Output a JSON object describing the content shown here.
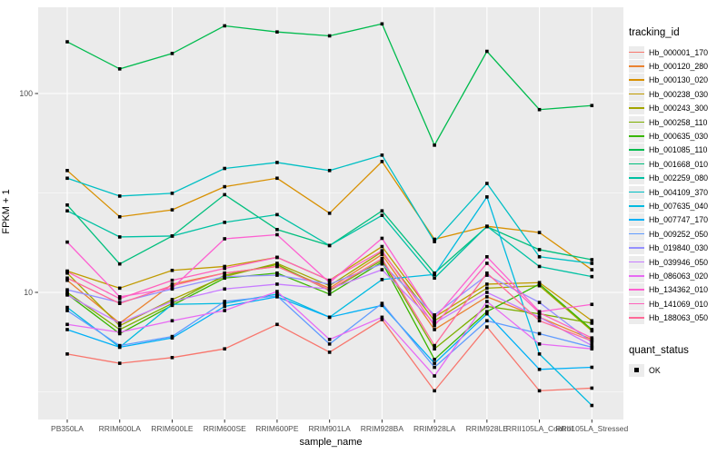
{
  "figure": {
    "panel_background": "#EBEBEB",
    "gridline_color": "#FFFFFF",
    "tick_label_color": "#4D4D4D",
    "axis_title_color": "#000000",
    "point_color": "#000000"
  },
  "legend": {
    "tracking_title": "tracking_id",
    "quant_title": "quant_status",
    "quant_items": [
      {
        "label": "OK",
        "shape": "square",
        "color": "#000000"
      }
    ]
  },
  "chart_data": {
    "type": "line",
    "title": "",
    "xlabel": "sample_name",
    "ylabel": "FPKM + 1",
    "y_scale": "log10",
    "ylim": [
      2,
      300
    ],
    "y_ticks": [
      10,
      100
    ],
    "y_minor_ticks": [
      3.162,
      31.62
    ],
    "grid": true,
    "legend_position": "right",
    "marker": "black-square",
    "categories": [
      "PB350LA",
      "RRIM600LA",
      "RRIM600LE",
      "RRIM600SE",
      "RRIM600PE",
      "RRIM901LA",
      "RRIM928BA",
      "RRIM928LA",
      "RRIM928LE",
      "RRII105LA_Control",
      "RRII105LA_Stressed"
    ],
    "series": [
      {
        "name": "Hb_000001_170",
        "color": "#F8766D",
        "values": [
          4.9,
          4.4,
          4.7,
          5.2,
          6.9,
          5.0,
          7.3,
          3.2,
          6.7,
          3.2,
          3.3
        ]
      },
      {
        "name": "Hb_000120_280",
        "color": "#EA8331",
        "values": [
          11.5,
          7.0,
          11.0,
          12.5,
          13.5,
          10.5,
          15.5,
          6.5,
          9.5,
          7.5,
          5.8
        ]
      },
      {
        "name": "Hb_000130_020",
        "color": "#D89000",
        "values": [
          41,
          24,
          26,
          34,
          37.5,
          25,
          45.5,
          18.5,
          21.5,
          20,
          13
        ]
      },
      {
        "name": "Hb_000238_030",
        "color": "#C09B00",
        "values": [
          12.8,
          10.5,
          12.9,
          13.5,
          15.0,
          11.5,
          17.0,
          7.5,
          11.0,
          11.2,
          7.2
        ]
      },
      {
        "name": "Hb_000243_300",
        "color": "#A3A500",
        "values": [
          12.5,
          6.8,
          9.2,
          12.0,
          14.0,
          10.8,
          16.0,
          7.2,
          10.5,
          10.8,
          6.4
        ]
      },
      {
        "name": "Hb_000258_110",
        "color": "#7CAE00",
        "values": [
          10.0,
          6.5,
          8.8,
          12.2,
          13.8,
          10.2,
          14.5,
          5.2,
          8.5,
          7.8,
          7.0
        ]
      },
      {
        "name": "Hb_000635_030",
        "color": "#39B600",
        "values": [
          9.8,
          6.2,
          8.6,
          11.8,
          12.5,
          9.8,
          14.2,
          4.6,
          8.0,
          11.0,
          6.5
        ]
      },
      {
        "name": "Hb_001085_110",
        "color": "#00BB4E",
        "values": [
          182,
          133,
          159,
          219,
          204,
          195,
          224,
          55,
          163,
          83,
          87
        ]
      },
      {
        "name": "Hb_001668_010",
        "color": "#00BF7D",
        "values": [
          27.5,
          13.9,
          19.2,
          31.0,
          20.7,
          17.2,
          25.7,
          12.5,
          21.4,
          16.4,
          14.6
        ]
      },
      {
        "name": "Hb_002259_080",
        "color": "#00C1A3",
        "values": [
          25.7,
          19.0,
          19.2,
          22.5,
          24.6,
          17.2,
          24.4,
          11.8,
          21.5,
          13.5,
          12.0
        ]
      },
      {
        "name": "Hb_004109_370",
        "color": "#00BFC4",
        "values": [
          37.5,
          30.5,
          31.5,
          42.0,
          45.0,
          41.0,
          49.0,
          18.0,
          35.3,
          15.1,
          14.0
        ]
      },
      {
        "name": "Hb_007635_040",
        "color": "#00BAE0",
        "values": [
          8.4,
          5.3,
          8.7,
          8.8,
          9.8,
          7.5,
          11.6,
          12.3,
          30.2,
          4.9,
          2.7
        ]
      },
      {
        "name": "Hb_007747_170",
        "color": "#00B0F6",
        "values": [
          6.5,
          5.3,
          5.9,
          8.5,
          9.5,
          7.5,
          8.6,
          4.4,
          7.8,
          4.1,
          4.2
        ]
      },
      {
        "name": "Hb_009252_050",
        "color": "#619CFF",
        "values": [
          8.1,
          5.4,
          6.0,
          9.0,
          9.6,
          5.5,
          8.8,
          4.2,
          7.2,
          6.2,
          5.3
        ]
      },
      {
        "name": "Hb_019840_030",
        "color": "#9590FF",
        "values": [
          10.3,
          8.9,
          10.4,
          12.0,
          12.2,
          11.0,
          13.9,
          7.7,
          12.2,
          8.9,
          5.6
        ]
      },
      {
        "name": "Hb_039946_050",
        "color": "#C77CFF",
        "values": [
          9.7,
          7.0,
          9.0,
          10.4,
          11.0,
          10.4,
          13.0,
          7.0,
          10.0,
          7.5,
          5.4
        ]
      },
      {
        "name": "Hb_086063_020",
        "color": "#E76BF3",
        "values": [
          6.9,
          6.3,
          7.2,
          8.1,
          10.1,
          5.8,
          7.5,
          3.8,
          9.0,
          5.5,
          5.2
        ]
      },
      {
        "name": "Hb_134362_010",
        "color": "#FD61D1",
        "values": [
          17.9,
          9.5,
          10.5,
          18.6,
          19.5,
          11.2,
          18.7,
          7.4,
          15.1,
          8.0,
          8.7
        ]
      },
      {
        "name": "Hb_141069_010",
        "color": "#FF62BC",
        "values": [
          12.7,
          9.3,
          11.5,
          13.2,
          15.0,
          11.5,
          16.2,
          6.8,
          14.0,
          7.9,
          5.9
        ]
      },
      {
        "name": "Hb_188063_050",
        "color": "#FF6A98",
        "values": [
          11.8,
          8.8,
          10.8,
          12.5,
          13.5,
          10.3,
          14.8,
          5.4,
          12.5,
          7.2,
          5.7
        ]
      }
    ]
  }
}
